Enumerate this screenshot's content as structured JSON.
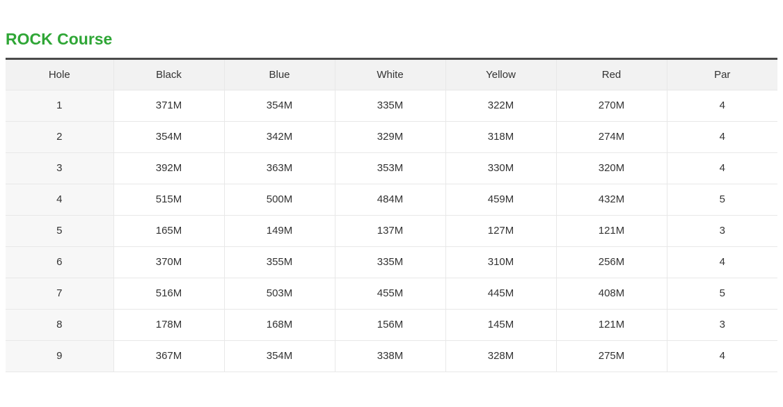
{
  "page": {
    "title": "ROCK Course"
  },
  "colors": {
    "title_green": "#2fa636",
    "header_bg": "#f2f2f2",
    "hole_column_bg": "#f7f7f7",
    "cell_border": "#e8e8e8",
    "table_top_border": "#4a4a4a",
    "text": "#333333"
  },
  "table": {
    "columns": [
      "Hole",
      "Black",
      "Blue",
      "White",
      "Yellow",
      "Red",
      "Par"
    ],
    "rows": [
      [
        "1",
        "371M",
        "354M",
        "335M",
        "322M",
        "270M",
        "4"
      ],
      [
        "2",
        "354M",
        "342M",
        "329M",
        "318M",
        "274M",
        "4"
      ],
      [
        "3",
        "392M",
        "363M",
        "353M",
        "330M",
        "320M",
        "4"
      ],
      [
        "4",
        "515M",
        "500M",
        "484M",
        "459M",
        "432M",
        "5"
      ],
      [
        "5",
        "165M",
        "149M",
        "137M",
        "127M",
        "121M",
        "3"
      ],
      [
        "6",
        "370M",
        "355M",
        "335M",
        "310M",
        "256M",
        "4"
      ],
      [
        "7",
        "516M",
        "503M",
        "455M",
        "445M",
        "408M",
        "5"
      ],
      [
        "8",
        "178M",
        "168M",
        "156M",
        "145M",
        "121M",
        "3"
      ],
      [
        "9",
        "367M",
        "354M",
        "338M",
        "328M",
        "275M",
        "4"
      ]
    ]
  }
}
